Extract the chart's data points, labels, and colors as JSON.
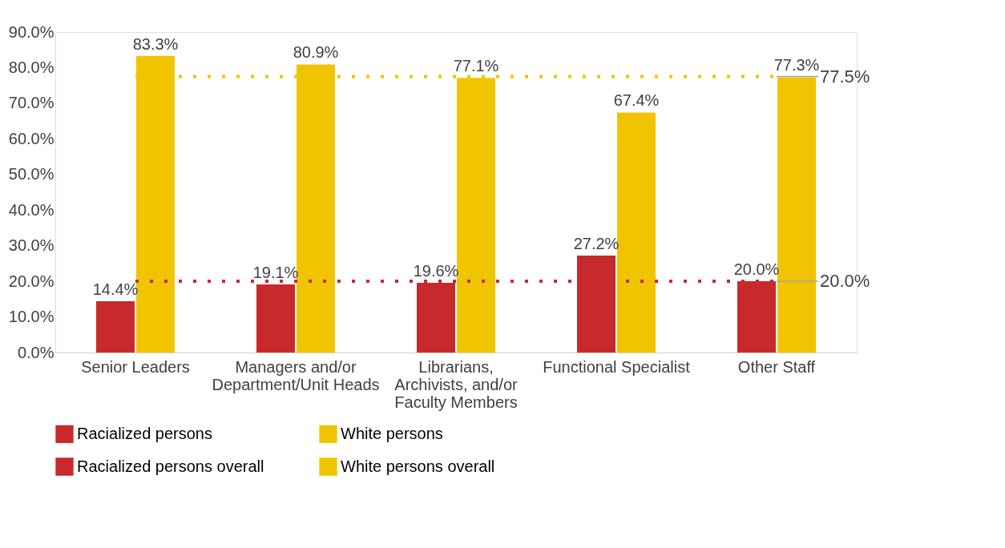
{
  "chart_data": {
    "type": "bar",
    "categories": [
      "Senior Leaders",
      "Managers and/or Department/Unit Heads",
      "Librarians, Archivists, and/or Faculty Members",
      "Functional Specialist",
      "Other Staff"
    ],
    "series": [
      {
        "name": "Racialized persons",
        "color": "#c8292c",
        "values": [
          14.4,
          19.1,
          19.6,
          27.2,
          20.0
        ],
        "value_labels": [
          "14.4%",
          "19.1%",
          "19.6%",
          "27.2%",
          "20.0%"
        ]
      },
      {
        "name": "White persons",
        "color": "#f0c400",
        "values": [
          83.3,
          80.9,
          77.1,
          67.4,
          77.3
        ],
        "value_labels": [
          "83.3%",
          "80.9%",
          "77.1%",
          "67.4%",
          "77.3%"
        ]
      },
      {
        "name": "Racialized persons overall",
        "type": "line",
        "color": "#c8292c",
        "line_style": "dotted",
        "marker": "none",
        "values": [
          20.0,
          20.0,
          20.0,
          20.0,
          20.0
        ],
        "value_labels": [
          null,
          null,
          null,
          null,
          "20.0%"
        ]
      },
      {
        "name": "White persons overall",
        "type": "line",
        "color": "#f0c400",
        "line_style": "dotted",
        "marker": "none",
        "values": [
          77.5,
          77.5,
          77.5,
          77.5,
          77.5
        ],
        "value_labels": [
          null,
          null,
          null,
          null,
          "77.5%"
        ]
      }
    ],
    "ylim": [
      0,
      90
    ],
    "yticks": [
      {
        "value": 0,
        "label": "0.0%"
      },
      {
        "value": 10,
        "label": "10.0%"
      },
      {
        "value": 20,
        "label": "20.0%"
      },
      {
        "value": 30,
        "label": "30.0%"
      },
      {
        "value": 40,
        "label": "40.0%"
      },
      {
        "value": 50,
        "label": "50.0%"
      },
      {
        "value": 60,
        "label": "60.0%"
      },
      {
        "value": 70,
        "label": "70.0%"
      },
      {
        "value": 80,
        "label": "80.0%"
      },
      {
        "value": 90,
        "label": "90.0%"
      }
    ],
    "grid": false,
    "legend": "bottom"
  }
}
